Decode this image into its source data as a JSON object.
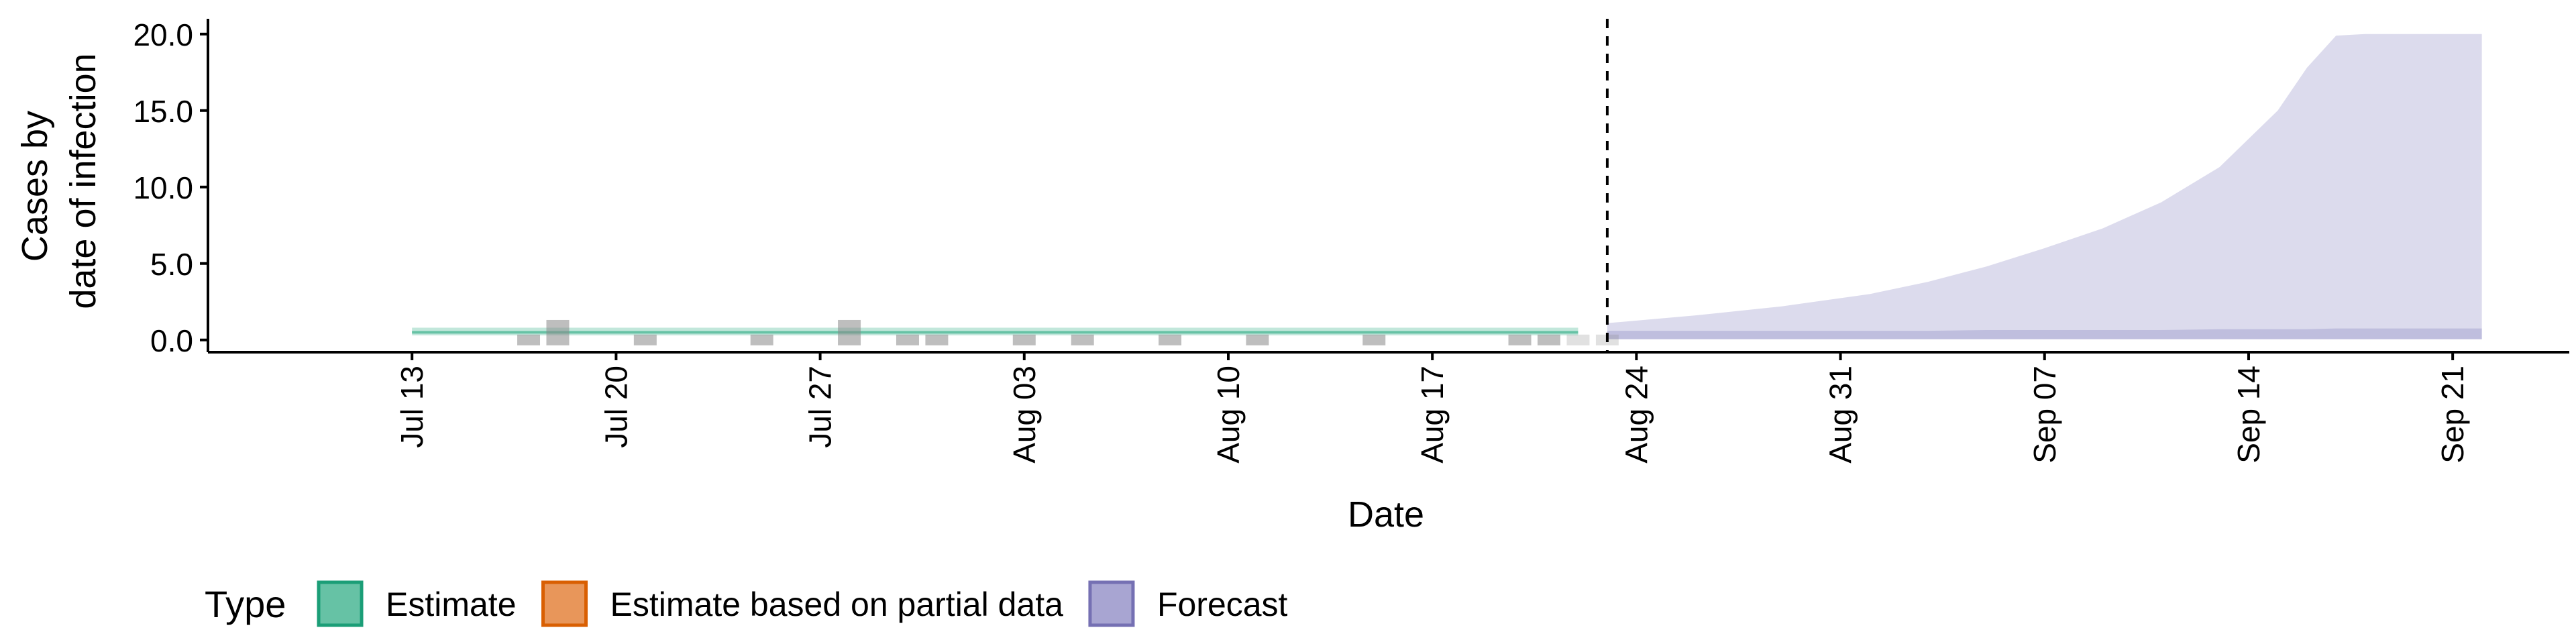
{
  "chart_data": {
    "type": "area",
    "title": "",
    "xlabel": "Date",
    "ylabel_lines": [
      "Cases by",
      "date of infection"
    ],
    "ylim": [
      -0.8,
      21.0
    ],
    "y_ticks": [
      0.0,
      5.0,
      10.0,
      15.0,
      20.0
    ],
    "y_tick_labels": [
      "0.0",
      "5.0",
      "10.0",
      "15.0",
      "20.0"
    ],
    "x_range": [
      "2020-07-06",
      "2020-09-25"
    ],
    "x_ticks": [
      "2020-07-13",
      "2020-07-20",
      "2020-07-27",
      "2020-08-03",
      "2020-08-10",
      "2020-08-17",
      "2020-08-24",
      "2020-08-31",
      "2020-09-07",
      "2020-09-14",
      "2020-09-21"
    ],
    "x_tick_labels": [
      "Jul 13",
      "Jul 20",
      "Jul 27",
      "Aug 03",
      "Aug 10",
      "Aug 17",
      "Aug 24",
      "Aug 31",
      "Sep 07",
      "Sep 14",
      "Sep 21"
    ],
    "forecast_start": "2020-08-23",
    "grid": false,
    "legend": {
      "title": "Type",
      "position": "bottom",
      "items": [
        {
          "label": "Estimate",
          "fill": "#66C2A5",
          "stroke": "#1B9E77"
        },
        {
          "label": "Estimate based on partial data",
          "fill": "#E8965A",
          "stroke": "#D95F02"
        },
        {
          "label": "Forecast",
          "fill": "#A8A5D2",
          "stroke": "#7570B3"
        }
      ]
    },
    "reported_cases": [
      {
        "date": "2020-07-17",
        "value": 0
      },
      {
        "date": "2020-07-18",
        "value": 1
      },
      {
        "date": "2020-07-21",
        "value": 0
      },
      {
        "date": "2020-07-25",
        "value": 0
      },
      {
        "date": "2020-07-28",
        "value": 1
      },
      {
        "date": "2020-07-30",
        "value": 0
      },
      {
        "date": "2020-07-31",
        "value": 0
      },
      {
        "date": "2020-08-03",
        "value": 0
      },
      {
        "date": "2020-08-05",
        "value": 0
      },
      {
        "date": "2020-08-08",
        "value": 0
      },
      {
        "date": "2020-08-11",
        "value": 0
      },
      {
        "date": "2020-08-15",
        "value": 0
      },
      {
        "date": "2020-08-20",
        "value": 0
      },
      {
        "date": "2020-08-21",
        "value": 0
      },
      {
        "date": "2020-08-22",
        "value": 0
      },
      {
        "date": "2020-08-23",
        "value": 0
      }
    ],
    "series": [
      {
        "name": "Estimate",
        "color": "#66C2A5",
        "x": [
          "2020-07-13",
          "2020-07-20",
          "2020-07-27",
          "2020-08-03",
          "2020-08-10",
          "2020-08-17",
          "2020-08-22"
        ],
        "upper_outer": [
          0.8,
          0.8,
          0.8,
          0.8,
          0.8,
          0.8,
          0.8
        ],
        "lower_outer": [
          0.3,
          0.3,
          0.3,
          0.3,
          0.3,
          0.3,
          0.3
        ],
        "upper_inner": [
          0.6,
          0.6,
          0.6,
          0.6,
          0.6,
          0.6,
          0.6
        ],
        "lower_inner": [
          0.4,
          0.4,
          0.4,
          0.4,
          0.4,
          0.4,
          0.4
        ],
        "median": [
          0.5,
          0.5,
          0.5,
          0.5,
          0.5,
          0.5,
          0.5
        ]
      },
      {
        "name": "Forecast",
        "color": "#A8A5D2",
        "x": [
          "2020-08-23",
          "2020-08-26",
          "2020-08-29",
          "2020-09-01",
          "2020-09-03",
          "2020-09-05",
          "2020-09-07",
          "2020-09-09",
          "2020-09-11",
          "2020-09-13",
          "2020-09-15",
          "2020-09-16",
          "2020-09-17",
          "2020-09-18",
          "2020-09-22"
        ],
        "upper_outer": [
          1.1,
          1.6,
          2.2,
          3.0,
          3.8,
          4.8,
          6.0,
          7.3,
          9.0,
          11.3,
          15.0,
          17.8,
          19.9,
          20.0,
          20.0
        ],
        "lower_outer": [
          0.05,
          0.05,
          0.05,
          0.05,
          0.05,
          0.05,
          0.05,
          0.05,
          0.05,
          0.05,
          0.05,
          0.05,
          0.05,
          0.05,
          0.05
        ],
        "upper_inner": [
          0.6,
          0.6,
          0.6,
          0.6,
          0.6,
          0.65,
          0.65,
          0.65,
          0.65,
          0.7,
          0.7,
          0.7,
          0.75,
          0.75,
          0.75
        ],
        "lower_inner": [
          0.05,
          0.05,
          0.05,
          0.05,
          0.05,
          0.05,
          0.05,
          0.05,
          0.05,
          0.05,
          0.05,
          0.05,
          0.05,
          0.05,
          0.05
        ]
      }
    ]
  }
}
